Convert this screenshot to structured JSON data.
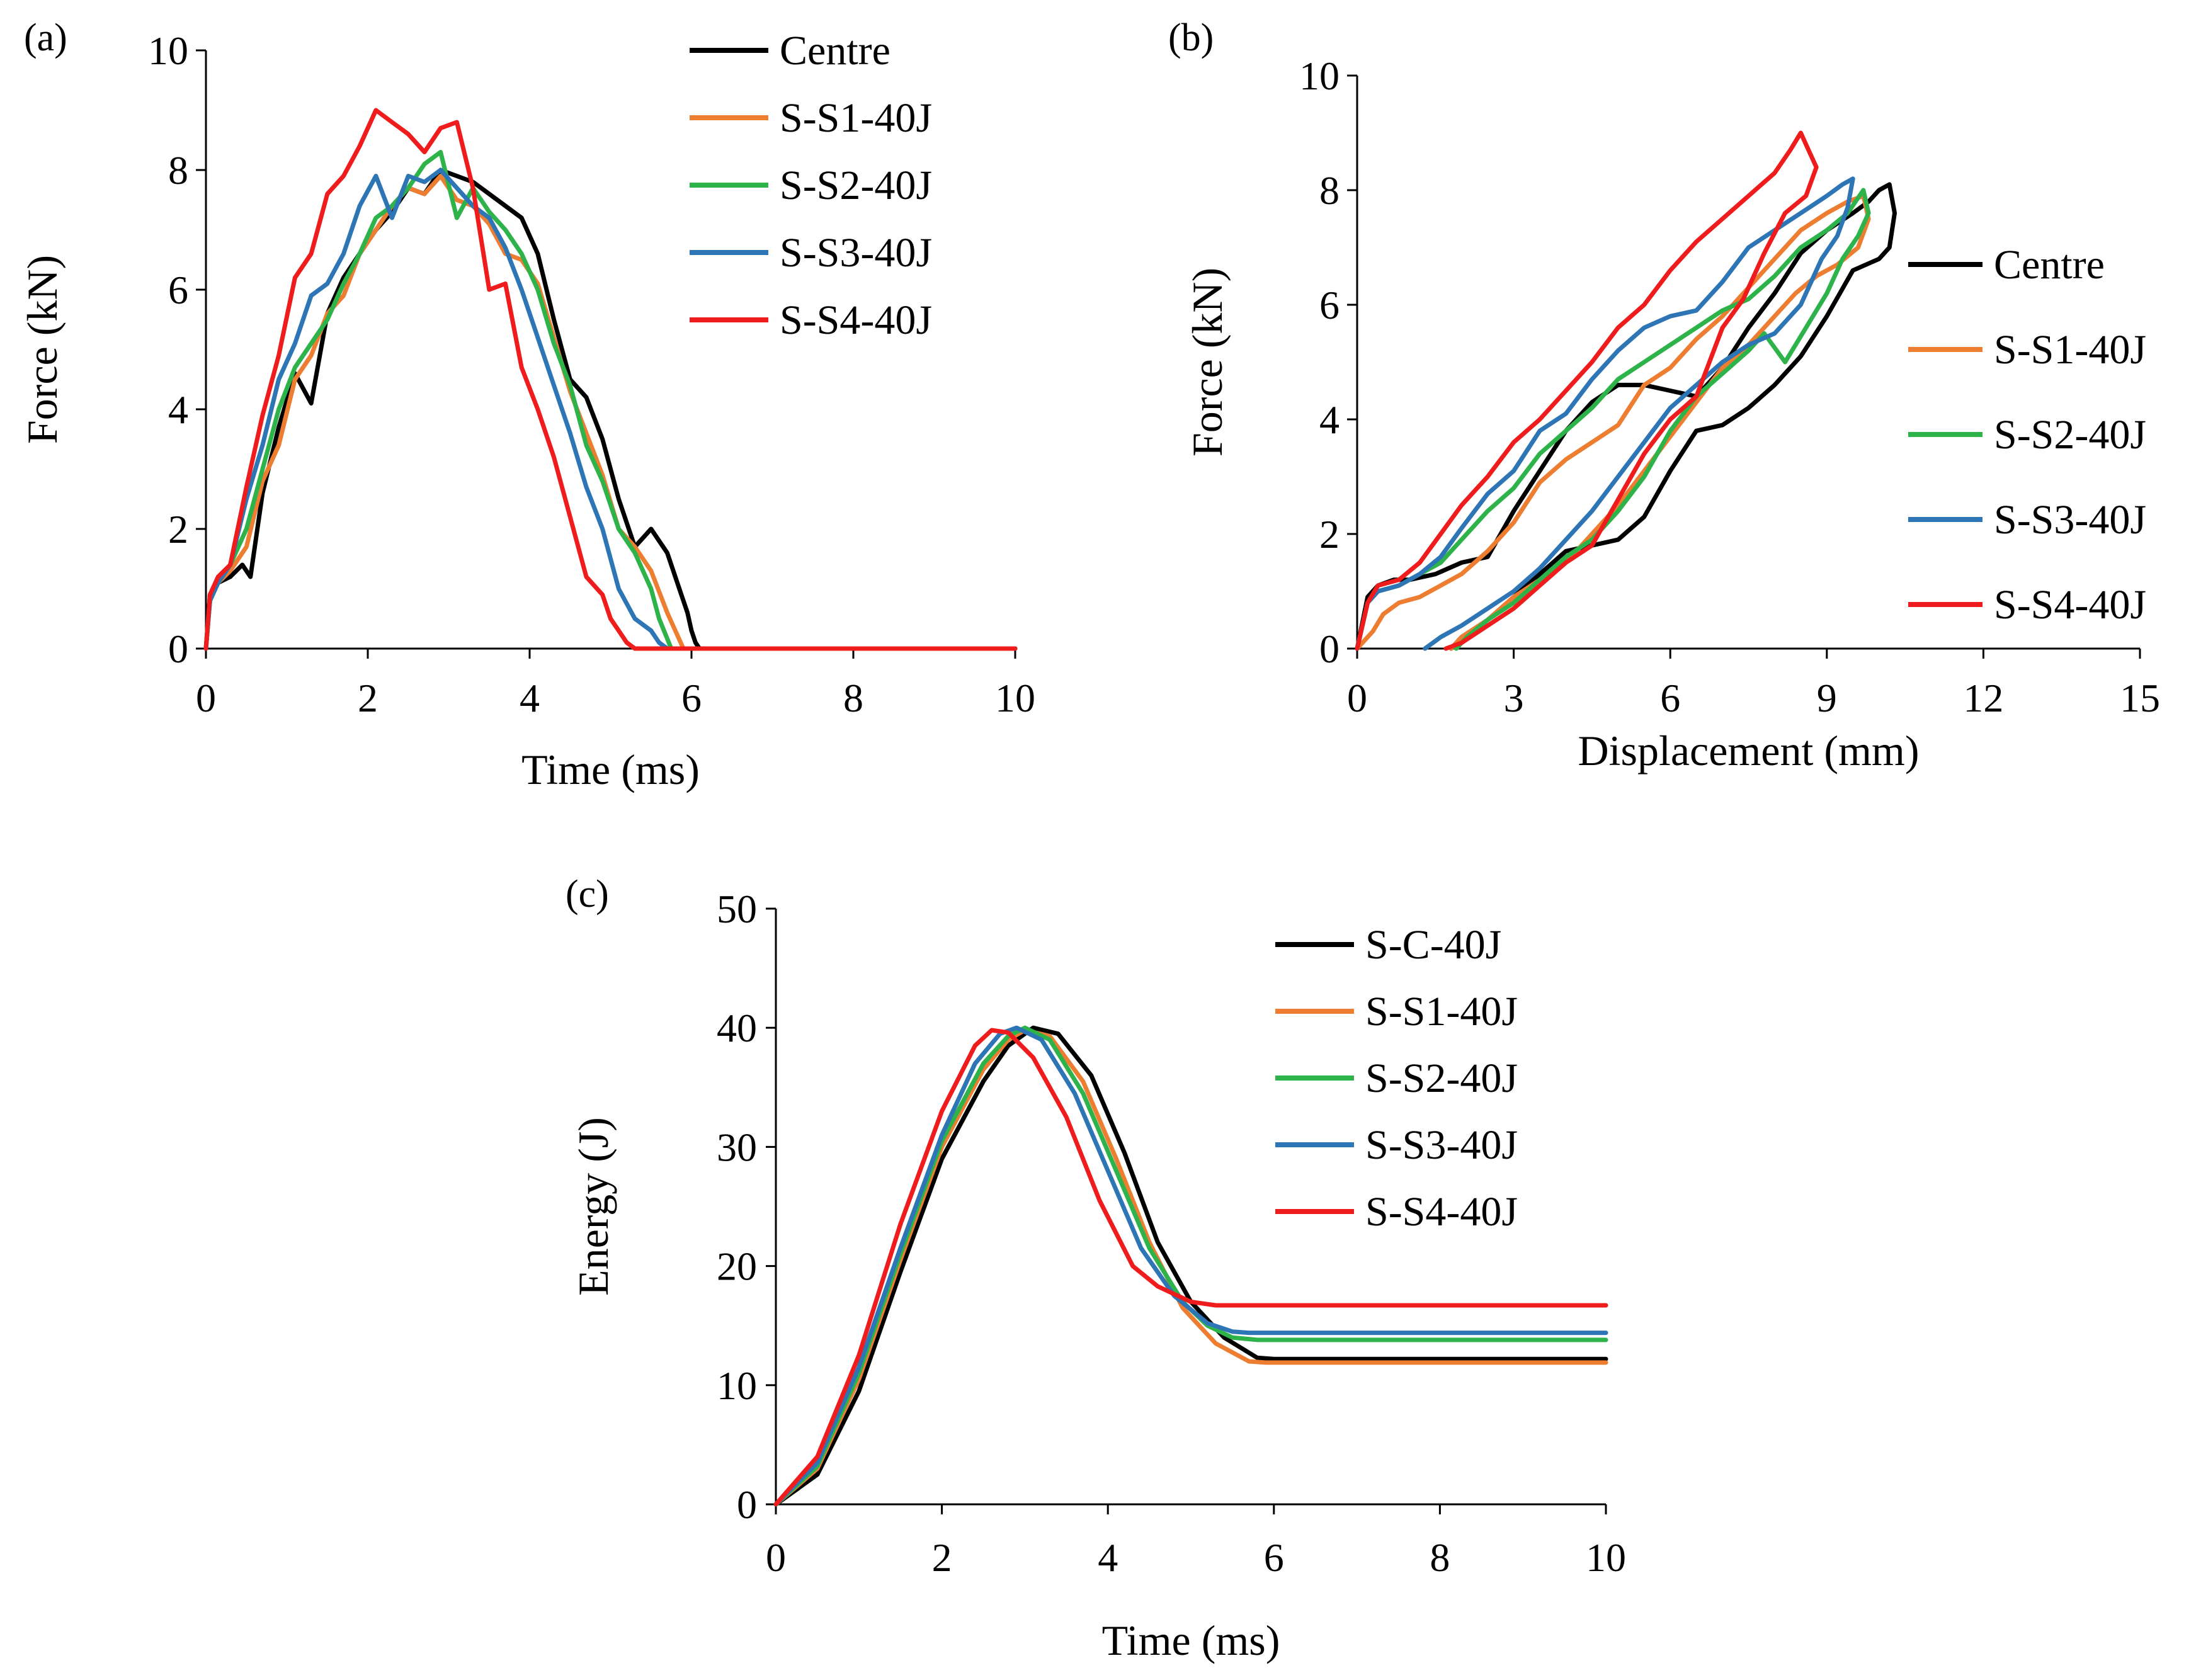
{
  "colors": {
    "centre": "#000000",
    "s1": "#ED7D31",
    "s2": "#2DB34A",
    "s3": "#2E75B6",
    "s4": "#EE1C1C"
  },
  "chart_data": [
    {
      "panel": "(a)",
      "type": "line",
      "title": "",
      "xlabel": "Time (ms)",
      "ylabel": "Force (kN)",
      "xlim": [
        0,
        10
      ],
      "ylim": [
        0,
        10
      ],
      "xticks": [
        0,
        2,
        4,
        6,
        8,
        10
      ],
      "yticks": [
        0,
        2,
        4,
        6,
        8,
        10
      ],
      "legend": "top-right",
      "series": [
        {
          "name": "Centre",
          "color": "#000000",
          "x": [
            0,
            0.05,
            0.15,
            0.3,
            0.45,
            0.55,
            0.7,
            0.9,
            1.1,
            1.3,
            1.5,
            1.7,
            1.9,
            2.1,
            2.3,
            2.5,
            2.7,
            2.9,
            3.1,
            3.3,
            3.5,
            3.7,
            3.9,
            4.1,
            4.3,
            4.5,
            4.7,
            4.9,
            5.1,
            5.3,
            5.5,
            5.7,
            5.85,
            5.95,
            6.0,
            6.05,
            6.1,
            10
          ],
          "y": [
            0,
            0.9,
            1.1,
            1.2,
            1.4,
            1.2,
            2.6,
            3.7,
            4.6,
            4.1,
            5.6,
            6.2,
            6.6,
            7.0,
            7.3,
            7.7,
            7.6,
            8.0,
            7.9,
            7.8,
            7.6,
            7.4,
            7.2,
            6.6,
            5.5,
            4.5,
            4.2,
            3.5,
            2.5,
            1.7,
            2.0,
            1.6,
            1.0,
            0.6,
            0.3,
            0.1,
            0,
            0
          ]
        },
        {
          "name": "S-S1-40J",
          "color": "#ED7D31",
          "x": [
            0,
            0.05,
            0.15,
            0.3,
            0.5,
            0.7,
            0.9,
            1.1,
            1.3,
            1.5,
            1.7,
            1.9,
            2.1,
            2.3,
            2.5,
            2.7,
            2.9,
            3.1,
            3.3,
            3.5,
            3.7,
            3.9,
            4.1,
            4.3,
            4.5,
            4.7,
            4.9,
            5.1,
            5.3,
            5.5,
            5.7,
            5.8,
            5.9,
            10
          ],
          "y": [
            0,
            0.8,
            1.1,
            1.3,
            1.7,
            2.8,
            3.4,
            4.5,
            4.9,
            5.6,
            5.9,
            6.6,
            7.0,
            7.4,
            7.7,
            7.6,
            7.9,
            7.5,
            7.4,
            7.1,
            6.6,
            6.5,
            6.1,
            5.2,
            4.3,
            3.6,
            2.9,
            2.0,
            1.7,
            1.3,
            0.6,
            0.3,
            0,
            0
          ]
        },
        {
          "name": "S-S2-40J",
          "color": "#2DB34A",
          "x": [
            0,
            0.05,
            0.15,
            0.3,
            0.5,
            0.7,
            0.9,
            1.1,
            1.3,
            1.5,
            1.7,
            1.9,
            2.1,
            2.3,
            2.5,
            2.7,
            2.9,
            3.1,
            3.3,
            3.5,
            3.7,
            3.9,
            4.1,
            4.3,
            4.5,
            4.7,
            4.9,
            5.1,
            5.3,
            5.5,
            5.6,
            5.75,
            10
          ],
          "y": [
            0,
            0.8,
            1.1,
            1.4,
            2.0,
            3.0,
            4.0,
            4.7,
            5.1,
            5.5,
            6.1,
            6.6,
            7.2,
            7.4,
            7.7,
            8.1,
            8.3,
            7.2,
            7.7,
            7.3,
            7.0,
            6.6,
            6.0,
            5.1,
            4.4,
            3.4,
            2.8,
            2.0,
            1.6,
            1.0,
            0.5,
            0,
            0
          ]
        },
        {
          "name": "S-S3-40J",
          "color": "#2E75B6",
          "x": [
            0,
            0.05,
            0.15,
            0.3,
            0.5,
            0.7,
            0.9,
            1.1,
            1.3,
            1.5,
            1.7,
            1.9,
            2.1,
            2.3,
            2.5,
            2.7,
            2.9,
            3.1,
            3.3,
            3.5,
            3.7,
            3.9,
            4.1,
            4.3,
            4.5,
            4.7,
            4.9,
            5.1,
            5.3,
            5.5,
            5.6,
            5.7,
            10
          ],
          "y": [
            0,
            0.8,
            1.1,
            1.4,
            2.5,
            3.4,
            4.5,
            5.1,
            5.9,
            6.1,
            6.6,
            7.4,
            7.9,
            7.2,
            7.9,
            7.8,
            8.0,
            7.7,
            7.4,
            7.2,
            6.7,
            6.0,
            5.2,
            4.4,
            3.6,
            2.7,
            2.0,
            1.0,
            0.5,
            0.3,
            0.1,
            0,
            0
          ]
        },
        {
          "name": "S-S4-40J",
          "color": "#EE1C1C",
          "x": [
            0,
            0.05,
            0.15,
            0.3,
            0.5,
            0.7,
            0.9,
            1.1,
            1.3,
            1.5,
            1.7,
            1.9,
            2.1,
            2.3,
            2.5,
            2.7,
            2.9,
            3.1,
            3.3,
            3.5,
            3.7,
            3.9,
            4.1,
            4.3,
            4.5,
            4.7,
            4.9,
            5.0,
            5.1,
            5.2,
            5.3,
            10
          ],
          "y": [
            0,
            0.9,
            1.2,
            1.4,
            2.7,
            3.9,
            4.9,
            6.2,
            6.6,
            7.6,
            7.9,
            8.4,
            9.0,
            8.8,
            8.6,
            8.3,
            8.7,
            8.8,
            7.7,
            6.0,
            6.1,
            4.7,
            4.0,
            3.2,
            2.2,
            1.2,
            0.9,
            0.5,
            0.3,
            0.1,
            0,
            0
          ]
        }
      ]
    },
    {
      "panel": "(b)",
      "type": "line",
      "title": "",
      "xlabel": "Displacement (mm)",
      "ylabel": "Force (kN)",
      "xlim": [
        0,
        15
      ],
      "ylim": [
        0,
        10
      ],
      "xticks": [
        0,
        3,
        6,
        9,
        12,
        15
      ],
      "yticks": [
        0,
        2,
        4,
        6,
        8,
        10
      ],
      "legend": "right",
      "series": [
        {
          "name": "Centre",
          "color": "#000000",
          "x": [
            0,
            0.2,
            0.4,
            0.7,
            1.0,
            1.5,
            2.0,
            2.5,
            3.0,
            3.5,
            4.0,
            4.5,
            5.0,
            5.5,
            6.0,
            6.5,
            7.0,
            7.5,
            8.0,
            8.5,
            9.0,
            9.5,
            9.8,
            10.0,
            10.2,
            10.3,
            10.2,
            10.0,
            9.5,
            9.0,
            8.5,
            8.0,
            7.5,
            7.0,
            6.5,
            6.0,
            5.5,
            5.0,
            4.5,
            4.0,
            3.5,
            3.0,
            2.5,
            2.0,
            1.8
          ],
          "y": [
            0,
            0.9,
            1.1,
            1.2,
            1.2,
            1.3,
            1.5,
            1.6,
            2.4,
            3.1,
            3.8,
            4.3,
            4.6,
            4.6,
            4.5,
            4.4,
            4.9,
            5.6,
            6.2,
            6.9,
            7.3,
            7.6,
            7.8,
            8.0,
            8.1,
            7.6,
            7.0,
            6.8,
            6.6,
            5.8,
            5.1,
            4.6,
            4.2,
            3.9,
            3.8,
            3.1,
            2.3,
            1.9,
            1.8,
            1.7,
            1.3,
            0.9,
            0.5,
            0.2,
            0
          ]
        },
        {
          "name": "S-S1-40J",
          "color": "#ED7D31",
          "x": [
            0,
            0.3,
            0.5,
            0.8,
            1.2,
            1.6,
            2.0,
            2.5,
            3.0,
            3.5,
            4.0,
            4.5,
            5.0,
            5.5,
            6.0,
            6.5,
            7.0,
            7.5,
            8.0,
            8.5,
            9.0,
            9.4,
            9.7,
            9.8,
            9.6,
            9.2,
            8.8,
            8.4,
            8.0,
            7.5,
            7.0,
            6.5,
            6.0,
            5.5,
            5.0,
            4.5,
            4.0,
            3.5,
            3.0,
            2.5,
            2.0,
            1.8
          ],
          "y": [
            0,
            0.3,
            0.6,
            0.8,
            0.9,
            1.1,
            1.3,
            1.7,
            2.2,
            2.9,
            3.3,
            3.6,
            3.9,
            4.6,
            4.9,
            5.4,
            5.8,
            6.3,
            6.8,
            7.3,
            7.6,
            7.8,
            7.9,
            7.5,
            7.0,
            6.7,
            6.5,
            6.2,
            5.8,
            5.3,
            4.9,
            4.3,
            3.7,
            3.1,
            2.5,
            2.0,
            1.5,
            1.2,
            0.9,
            0.5,
            0.2,
            0
          ]
        },
        {
          "name": "S-S2-40J",
          "color": "#2DB34A",
          "x": [
            0,
            0.2,
            0.4,
            0.8,
            1.2,
            1.6,
            2.0,
            2.5,
            3.0,
            3.5,
            4.0,
            4.5,
            5.0,
            5.5,
            6.0,
            6.5,
            7.0,
            7.5,
            8.0,
            8.5,
            9.0,
            9.4,
            9.7,
            9.8,
            9.6,
            9.3,
            9.0,
            8.6,
            8.2,
            7.8,
            7.5,
            7.0,
            6.5,
            6.0,
            5.5,
            5.0,
            4.5,
            4.0,
            3.5,
            3.0,
            2.5,
            2.1,
            1.9
          ],
          "y": [
            0,
            0.8,
            1.0,
            1.1,
            1.3,
            1.5,
            1.9,
            2.4,
            2.8,
            3.4,
            3.8,
            4.2,
            4.7,
            5.0,
            5.3,
            5.6,
            5.9,
            6.1,
            6.5,
            7.0,
            7.3,
            7.6,
            8.0,
            7.6,
            7.2,
            6.8,
            6.2,
            5.6,
            5.0,
            5.5,
            5.2,
            4.8,
            4.4,
            3.8,
            3.0,
            2.4,
            1.9,
            1.6,
            1.2,
            0.8,
            0.5,
            0.2,
            0
          ]
        },
        {
          "name": "S-S3-40J",
          "color": "#2E75B6",
          "x": [
            0,
            0.2,
            0.4,
            0.8,
            1.2,
            1.6,
            2.0,
            2.5,
            3.0,
            3.5,
            4.0,
            4.5,
            5.0,
            5.5,
            6.0,
            6.5,
            7.0,
            7.5,
            8.0,
            8.5,
            9.0,
            9.3,
            9.5,
            9.4,
            9.2,
            8.9,
            8.5,
            8.0,
            7.5,
            7.0,
            6.5,
            6.0,
            5.5,
            5.0,
            4.5,
            4.0,
            3.5,
            3.0,
            2.5,
            2.0,
            1.6,
            1.3
          ],
          "y": [
            0,
            0.8,
            1.0,
            1.1,
            1.3,
            1.6,
            2.1,
            2.7,
            3.1,
            3.8,
            4.1,
            4.7,
            5.2,
            5.6,
            5.8,
            5.9,
            6.4,
            7.0,
            7.3,
            7.6,
            7.9,
            8.1,
            8.2,
            7.7,
            7.2,
            6.8,
            6.0,
            5.5,
            5.3,
            5.0,
            4.6,
            4.2,
            3.6,
            3.0,
            2.4,
            1.9,
            1.4,
            1.0,
            0.7,
            0.4,
            0.2,
            0
          ]
        },
        {
          "name": "S-S4-40J",
          "color": "#EE1C1C",
          "x": [
            0,
            0.2,
            0.4,
            0.8,
            1.2,
            1.6,
            2.0,
            2.5,
            3.0,
            3.5,
            4.0,
            4.5,
            5.0,
            5.5,
            6.0,
            6.5,
            7.0,
            7.5,
            8.0,
            8.3,
            8.5,
            8.7,
            8.8,
            8.6,
            8.2,
            7.8,
            7.4,
            7.0,
            6.5,
            6.0,
            5.5,
            5.0,
            4.5,
            4.0,
            3.5,
            3.0,
            2.5,
            2.0,
            1.7
          ],
          "y": [
            0,
            0.8,
            1.1,
            1.2,
            1.5,
            2.0,
            2.5,
            3.0,
            3.6,
            4.0,
            4.5,
            5.0,
            5.6,
            6.0,
            6.6,
            7.1,
            7.5,
            7.9,
            8.3,
            8.7,
            9.0,
            8.6,
            8.4,
            7.9,
            7.6,
            6.9,
            6.1,
            5.6,
            4.4,
            4.0,
            3.4,
            2.6,
            1.8,
            1.5,
            1.1,
            0.7,
            0.4,
            0.1,
            0
          ]
        }
      ]
    },
    {
      "panel": "(c)",
      "type": "line",
      "title": "",
      "xlabel": "Time (ms)",
      "ylabel": "Energy (J)",
      "xlim": [
        0,
        10
      ],
      "ylim": [
        0,
        50
      ],
      "xticks": [
        0,
        2,
        4,
        6,
        8,
        10
      ],
      "yticks": [
        0,
        10,
        20,
        30,
        40,
        50
      ],
      "legend": "top-right",
      "series": [
        {
          "name": "S-C-40J",
          "color": "#000000",
          "x": [
            0,
            0.5,
            1.0,
            1.5,
            2.0,
            2.5,
            2.8,
            3.1,
            3.4,
            3.8,
            4.2,
            4.6,
            5.0,
            5.4,
            5.8,
            6.0,
            10
          ],
          "y": [
            0,
            2.5,
            9.5,
            19.5,
            29.0,
            35.5,
            38.5,
            40.0,
            39.5,
            36.0,
            29.5,
            22.0,
            17.0,
            14.0,
            12.3,
            12.2,
            12.2
          ]
        },
        {
          "name": "S-S1-40J",
          "color": "#ED7D31",
          "x": [
            0,
            0.5,
            1.0,
            1.5,
            2.0,
            2.5,
            2.8,
            3.0,
            3.3,
            3.7,
            4.1,
            4.5,
            4.9,
            5.3,
            5.7,
            5.9,
            10
          ],
          "y": [
            0,
            3.0,
            10.5,
            20.5,
            30.0,
            36.5,
            39.0,
            39.8,
            39.3,
            35.5,
            29.0,
            22.0,
            16.5,
            13.5,
            12.0,
            11.9,
            11.9
          ]
        },
        {
          "name": "S-S2-40J",
          "color": "#2DB34A",
          "x": [
            0,
            0.5,
            1.0,
            1.5,
            2.0,
            2.5,
            2.8,
            3.0,
            3.3,
            3.7,
            4.1,
            4.5,
            4.9,
            5.2,
            5.5,
            5.8,
            10
          ],
          "y": [
            0,
            3.2,
            11.0,
            21.0,
            30.5,
            37.0,
            39.3,
            40.0,
            39.0,
            34.5,
            28.0,
            21.5,
            17.0,
            15.0,
            14.0,
            13.8,
            13.8
          ]
        },
        {
          "name": "S-S3-40J",
          "color": "#2E75B6",
          "x": [
            0,
            0.5,
            1.0,
            1.5,
            2.0,
            2.4,
            2.7,
            2.9,
            3.2,
            3.6,
            4.0,
            4.4,
            4.8,
            5.2,
            5.5,
            5.7,
            10
          ],
          "y": [
            0,
            3.5,
            11.5,
            21.5,
            31.0,
            37.0,
            39.5,
            40.0,
            39.0,
            34.5,
            28.0,
            21.5,
            17.5,
            15.2,
            14.5,
            14.4,
            14.4
          ]
        },
        {
          "name": "S-S4-40J",
          "color": "#EE1C1C",
          "x": [
            0,
            0.5,
            1.0,
            1.5,
            2.0,
            2.4,
            2.6,
            2.8,
            3.1,
            3.5,
            3.9,
            4.3,
            4.6,
            5.0,
            5.3,
            5.5,
            10
          ],
          "y": [
            0,
            4.0,
            12.5,
            23.5,
            33.0,
            38.5,
            39.8,
            39.6,
            37.5,
            32.5,
            25.5,
            20.0,
            18.3,
            17.0,
            16.7,
            16.7,
            16.7
          ]
        }
      ]
    }
  ]
}
